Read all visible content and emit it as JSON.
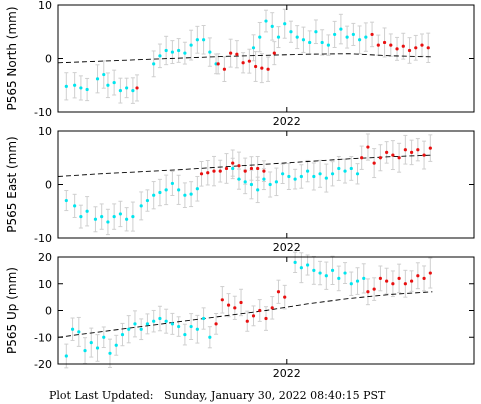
{
  "footer": {
    "label": "Plot Last Updated:",
    "timestamp": "Sunday, January 30, 2022 08:40:15 PST"
  },
  "colors": {
    "cleaned": "#00e5ee",
    "rapid": "#e81010",
    "error_bar": "#cfcfcf",
    "model": "#000000"
  },
  "chart_data": [
    {
      "type": "scatter",
      "ylabel": "P565 North (mm)",
      "ylim": [
        -10,
        10
      ],
      "yticks": [
        -10,
        0,
        10
      ],
      "xtick_label": "2022",
      "xtick_value": 0.55,
      "x_range": [
        0,
        1
      ],
      "grid": false,
      "series": [
        {
          "color": "cyan",
          "points": [
            [
              0.02,
              -5.2
            ],
            [
              0.04,
              -5
            ],
            [
              0.055,
              -5.5
            ],
            [
              0.07,
              -5.8
            ],
            [
              0.095,
              -3.8
            ],
            [
              0.11,
              -3
            ],
            [
              0.12,
              -5
            ],
            [
              0.135,
              -4.5
            ],
            [
              0.15,
              -6
            ],
            [
              0.165,
              -5.5
            ],
            [
              0.18,
              -6
            ],
            [
              0.23,
              -1
            ],
            [
              0.245,
              0.5
            ],
            [
              0.26,
              1.5
            ],
            [
              0.275,
              1.2
            ],
            [
              0.29,
              1.5
            ],
            [
              0.305,
              1
            ],
            [
              0.32,
              2.5
            ],
            [
              0.335,
              3.5
            ],
            [
              0.35,
              3.5
            ],
            [
              0.365,
              1.2
            ],
            [
              0.38,
              -1
            ],
            [
              0.47,
              2
            ],
            [
              0.485,
              4
            ],
            [
              0.5,
              7
            ],
            [
              0.515,
              6
            ],
            [
              0.53,
              4
            ],
            [
              0.545,
              6.5
            ],
            [
              0.56,
              5
            ],
            [
              0.575,
              4
            ],
            [
              0.59,
              3.5
            ],
            [
              0.605,
              3
            ],
            [
              0.62,
              5
            ],
            [
              0.635,
              3
            ],
            [
              0.65,
              2.5
            ],
            [
              0.665,
              4.5
            ],
            [
              0.68,
              5.5
            ],
            [
              0.695,
              4
            ],
            [
              0.71,
              4.5
            ],
            [
              0.725,
              3.5
            ],
            [
              0.74,
              4
            ]
          ]
        },
        {
          "color": "red",
          "points": [
            [
              0.19,
              -5.5
            ],
            [
              0.385,
              -1
            ],
            [
              0.4,
              -2
            ],
            [
              0.415,
              1
            ],
            [
              0.43,
              0.8
            ],
            [
              0.445,
              -0.8
            ],
            [
              0.46,
              -0.5
            ],
            [
              0.475,
              -1.5
            ],
            [
              0.49,
              -1.8
            ],
            [
              0.505,
              -2
            ],
            [
              0.52,
              1
            ],
            [
              0.755,
              4.5
            ],
            [
              0.77,
              2.5
            ],
            [
              0.785,
              3
            ],
            [
              0.8,
              2.5
            ],
            [
              0.815,
              1.8
            ],
            [
              0.83,
              2.3
            ],
            [
              0.845,
              1.5
            ],
            [
              0.86,
              2
            ],
            [
              0.875,
              2.5
            ],
            [
              0.89,
              2
            ]
          ]
        }
      ],
      "model": [
        [
          0.0,
          -0.8
        ],
        [
          0.1,
          -0.5
        ],
        [
          0.2,
          -0.2
        ],
        [
          0.3,
          0.1
        ],
        [
          0.4,
          0.4
        ],
        [
          0.5,
          0.6
        ],
        [
          0.6,
          0.8
        ],
        [
          0.7,
          0.9
        ],
        [
          0.8,
          0.5
        ],
        [
          0.9,
          0.3
        ]
      ]
    },
    {
      "type": "scatter",
      "ylabel": "P565 East (mm)",
      "ylim": [
        -10,
        10
      ],
      "yticks": [
        -10,
        0,
        10
      ],
      "xtick_label": "2022",
      "xtick_value": 0.55,
      "x_range": [
        0,
        1
      ],
      "grid": false,
      "series": [
        {
          "color": "cyan",
          "points": [
            [
              0.02,
              -3
            ],
            [
              0.04,
              -4
            ],
            [
              0.055,
              -6
            ],
            [
              0.07,
              -5
            ],
            [
              0.09,
              -6.5
            ],
            [
              0.105,
              -6
            ],
            [
              0.12,
              -7
            ],
            [
              0.135,
              -6
            ],
            [
              0.15,
              -5.5
            ],
            [
              0.165,
              -6.5
            ],
            [
              0.18,
              -6
            ],
            [
              0.2,
              -4
            ],
            [
              0.215,
              -3
            ],
            [
              0.23,
              -2
            ],
            [
              0.245,
              -1.5
            ],
            [
              0.26,
              -1
            ],
            [
              0.275,
              0.2
            ],
            [
              0.29,
              -1
            ],
            [
              0.305,
              -2
            ],
            [
              0.32,
              -1.8
            ],
            [
              0.335,
              -0.8
            ],
            [
              0.42,
              3
            ],
            [
              0.435,
              1
            ],
            [
              0.45,
              0.5
            ],
            [
              0.465,
              0
            ],
            [
              0.48,
              -1
            ],
            [
              0.495,
              1
            ],
            [
              0.51,
              0
            ],
            [
              0.525,
              0.5
            ],
            [
              0.54,
              2
            ],
            [
              0.555,
              1.5
            ],
            [
              0.57,
              1
            ],
            [
              0.585,
              1.5
            ],
            [
              0.6,
              2.5
            ],
            [
              0.615,
              1.5
            ],
            [
              0.63,
              2
            ],
            [
              0.645,
              1.2
            ],
            [
              0.66,
              2
            ],
            [
              0.675,
              3
            ],
            [
              0.69,
              2.5
            ],
            [
              0.705,
              3
            ],
            [
              0.72,
              2
            ]
          ]
        },
        {
          "color": "red",
          "points": [
            [
              0.345,
              2
            ],
            [
              0.36,
              2.2
            ],
            [
              0.375,
              2.5
            ],
            [
              0.39,
              2.5
            ],
            [
              0.405,
              3
            ],
            [
              0.42,
              4
            ],
            [
              0.435,
              3.5
            ],
            [
              0.45,
              2.5
            ],
            [
              0.465,
              3
            ],
            [
              0.48,
              3
            ],
            [
              0.495,
              2.5
            ],
            [
              0.73,
              5
            ],
            [
              0.745,
              7
            ],
            [
              0.76,
              4
            ],
            [
              0.775,
              5
            ],
            [
              0.79,
              6
            ],
            [
              0.805,
              5.5
            ],
            [
              0.82,
              5
            ],
            [
              0.835,
              6.5
            ],
            [
              0.85,
              6
            ],
            [
              0.865,
              6.5
            ],
            [
              0.88,
              5.5
            ],
            [
              0.895,
              6.8
            ]
          ]
        }
      ],
      "model": [
        [
          0.0,
          1.5
        ],
        [
          0.1,
          2
        ],
        [
          0.2,
          2.4
        ],
        [
          0.3,
          2.8
        ],
        [
          0.4,
          3.3
        ],
        [
          0.5,
          3.8
        ],
        [
          0.6,
          4.3
        ],
        [
          0.7,
          4.8
        ],
        [
          0.8,
          5.2
        ],
        [
          0.9,
          5.5
        ]
      ]
    },
    {
      "type": "scatter",
      "ylabel": "P565 Up (mm)",
      "ylim": [
        -20,
        20
      ],
      "yticks": [
        -20,
        -10,
        0,
        10,
        20
      ],
      "xtick_label": "2022",
      "xtick_value": 0.55,
      "x_range": [
        0,
        1
      ],
      "grid": false,
      "series": [
        {
          "color": "cyan",
          "points": [
            [
              0.02,
              -17
            ],
            [
              0.035,
              -7
            ],
            [
              0.05,
              -8
            ],
            [
              0.065,
              -15
            ],
            [
              0.08,
              -12
            ],
            [
              0.095,
              -14
            ],
            [
              0.11,
              -10
            ],
            [
              0.125,
              -16
            ],
            [
              0.14,
              -13
            ],
            [
              0.155,
              -9
            ],
            [
              0.17,
              -7
            ],
            [
              0.185,
              -5
            ],
            [
              0.2,
              -7
            ],
            [
              0.215,
              -5
            ],
            [
              0.23,
              -4
            ],
            [
              0.245,
              -3
            ],
            [
              0.26,
              -4
            ],
            [
              0.275,
              -5
            ],
            [
              0.29,
              -6
            ],
            [
              0.305,
              -9
            ],
            [
              0.32,
              -6
            ],
            [
              0.335,
              -7
            ],
            [
              0.35,
              -3
            ],
            [
              0.365,
              -10
            ],
            [
              0.57,
              18
            ],
            [
              0.585,
              16
            ],
            [
              0.6,
              17
            ],
            [
              0.615,
              15
            ],
            [
              0.63,
              14
            ],
            [
              0.645,
              13
            ],
            [
              0.66,
              15
            ],
            [
              0.675,
              12
            ],
            [
              0.69,
              14
            ],
            [
              0.705,
              10
            ],
            [
              0.72,
              11
            ],
            [
              0.735,
              12
            ]
          ]
        },
        {
          "color": "red",
          "points": [
            [
              0.38,
              -5
            ],
            [
              0.395,
              4
            ],
            [
              0.41,
              2
            ],
            [
              0.425,
              1
            ],
            [
              0.44,
              3
            ],
            [
              0.455,
              -4
            ],
            [
              0.47,
              -2
            ],
            [
              0.485,
              0
            ],
            [
              0.5,
              -3
            ],
            [
              0.515,
              1
            ],
            [
              0.53,
              7
            ],
            [
              0.545,
              5
            ],
            [
              0.745,
              7
            ],
            [
              0.76,
              8
            ],
            [
              0.775,
              12
            ],
            [
              0.79,
              11
            ],
            [
              0.805,
              10
            ],
            [
              0.82,
              12
            ],
            [
              0.835,
              10
            ],
            [
              0.85,
              11
            ],
            [
              0.865,
              13
            ],
            [
              0.88,
              12
            ],
            [
              0.895,
              14
            ]
          ]
        }
      ],
      "model": [
        [
          0.0,
          -10
        ],
        [
          0.1,
          -8
        ],
        [
          0.2,
          -6
        ],
        [
          0.3,
          -4
        ],
        [
          0.4,
          -2
        ],
        [
          0.5,
          0
        ],
        [
          0.6,
          2.5
        ],
        [
          0.7,
          4.5
        ],
        [
          0.8,
          6
        ],
        [
          0.9,
          7
        ]
      ]
    }
  ]
}
